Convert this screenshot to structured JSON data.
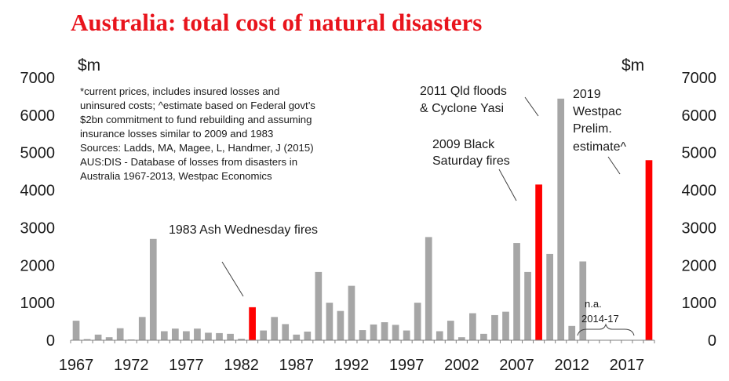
{
  "chart_data": {
    "type": "bar",
    "title": "Australia: total cost of natural disasters",
    "ylabel_left": "$m",
    "ylabel_right": "$m",
    "ylim": [
      0,
      7000
    ],
    "yticks": [
      0,
      1000,
      2000,
      3000,
      4000,
      5000,
      6000,
      7000
    ],
    "xtick_labels": [
      "1967",
      "1972",
      "1977",
      "1982",
      "1987",
      "1992",
      "1997",
      "2002",
      "2007",
      "2012",
      "2017"
    ],
    "x_start": 1967,
    "x_end": 2019,
    "colors": {
      "normal": "#a6a6a6",
      "highlight": "#ff0000"
    },
    "series": [
      {
        "name": "Total cost of natural disasters",
        "x": [
          1967,
          1968,
          1969,
          1970,
          1971,
          1972,
          1973,
          1974,
          1975,
          1976,
          1977,
          1978,
          1979,
          1980,
          1981,
          1982,
          1983,
          1984,
          1985,
          1986,
          1987,
          1988,
          1989,
          1990,
          1991,
          1992,
          1993,
          1994,
          1995,
          1996,
          1997,
          1998,
          1999,
          2000,
          2001,
          2002,
          2003,
          2004,
          2005,
          2006,
          2007,
          2008,
          2009,
          2010,
          2011,
          2012,
          2013,
          2019
        ],
        "values": [
          520,
          30,
          150,
          80,
          320,
          20,
          620,
          2700,
          240,
          310,
          240,
          310,
          200,
          190,
          170,
          40,
          880,
          260,
          620,
          430,
          150,
          230,
          1820,
          1000,
          780,
          1450,
          270,
          420,
          480,
          410,
          260,
          1000,
          2750,
          240,
          520,
          80,
          720,
          170,
          670,
          760,
          2590,
          1820,
          4150,
          2300,
          6440,
          380,
          2100,
          4800
        ],
        "highlight": [
          1983,
          2009,
          2019
        ]
      }
    ],
    "not_available": {
      "label": "n.a.",
      "range_label": "2014-17",
      "from": 2014,
      "to": 2017
    },
    "notes": [
      "*current prices, includes insured losses and",
      "uninsured costs; ^estimate based on Federal govt’s",
      "$2bn commitment to fund rebuilding and assuming",
      "insurance losses similar to 2009 and 1983",
      "Sources: Ladds, MA, Magee, L, Handmer, J (2015)",
      "AUS:DIS - Database of losses from disasters in",
      "Australia 1967-2013, Westpac Economics"
    ],
    "annotations": {
      "ash_wednesday": {
        "text": "1983 Ash Wednesday fires",
        "year": 1983
      },
      "black_saturday": {
        "lines": [
          "2009 Black",
          "Saturday fires"
        ],
        "year": 2009
      },
      "qld_floods": {
        "lines": [
          "2011 Qld floods",
          "& Cyclone Yasi"
        ],
        "year": 2011
      },
      "westpac": {
        "lines": [
          "2019",
          "Westpac",
          "Prelim.",
          "estimate^"
        ],
        "year": 2019
      }
    }
  }
}
